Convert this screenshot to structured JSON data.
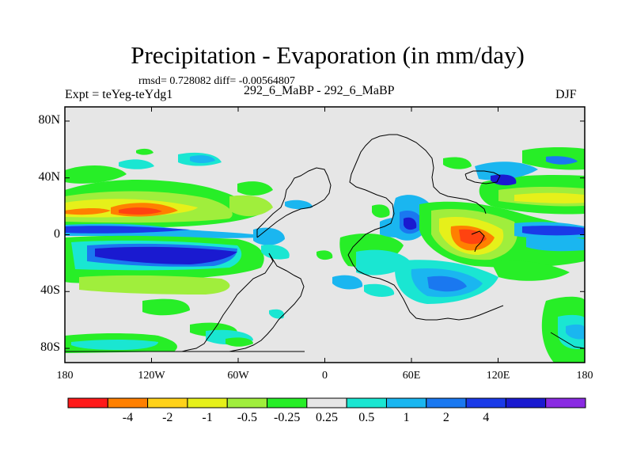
{
  "title": "Precipitation - Evaporation (in mm/day)",
  "stats": "rmsd= 0.728082  diff= -0.00564807",
  "experiment": "Expt = teYeg-teYdg1",
  "comparison": "292_6_MaBP - 292_6_MaBP",
  "season": "DJF",
  "map": {
    "lat_range": [
      -90,
      90
    ],
    "lon_range": [
      -180,
      180
    ],
    "y_tick_labels": [
      {
        "lat": 80,
        "label": "80N"
      },
      {
        "lat": 40,
        "label": "40N"
      },
      {
        "lat": 0,
        "label": "0"
      },
      {
        "lat": -40,
        "label": "40S"
      },
      {
        "lat": -80,
        "label": "80S"
      }
    ],
    "x_tick_labels": [
      {
        "lon": -180,
        "label": "180"
      },
      {
        "lon": -120,
        "label": "120W"
      },
      {
        "lon": -60,
        "label": "60W"
      },
      {
        "lon": 0,
        "label": "0"
      },
      {
        "lon": 60,
        "label": "60E"
      },
      {
        "lon": 120,
        "label": "120E"
      },
      {
        "lon": 180,
        "label": "180"
      }
    ]
  },
  "colorbar": {
    "colors": [
      "#ff1a1a",
      "#ff8000",
      "#ffd21a",
      "#e6f01a",
      "#a0ee3c",
      "#27ee27",
      "#e6e6e6",
      "#1ae6d2",
      "#1ab6f0",
      "#1a78f0",
      "#1a3ae8",
      "#1a1ad0",
      "#8a2be2"
    ],
    "labels": [
      "-4",
      "-2",
      "-1",
      "-0.5",
      "-0.25",
      "0.25",
      "0.5",
      "1",
      "2",
      "4"
    ]
  }
}
